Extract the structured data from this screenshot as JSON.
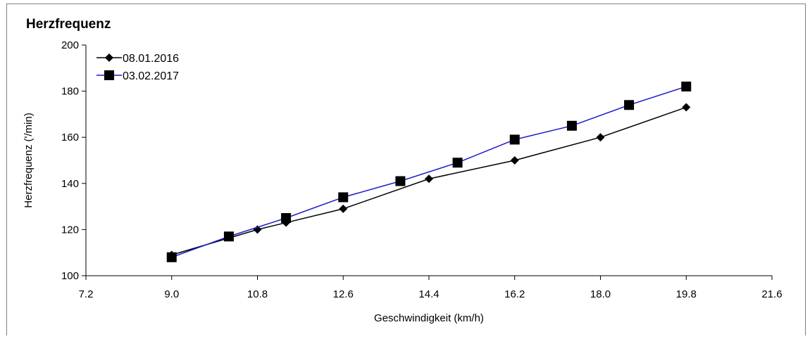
{
  "chart_data": {
    "type": "line",
    "title": "Herzfrequenz",
    "xlabel": "Geschwindigkeit (km/h)",
    "ylabel": "Herzfrequenz ('/min)",
    "xlim": [
      7.2,
      21.6
    ],
    "ylim": [
      100,
      200
    ],
    "xticks": [
      7.2,
      9.0,
      10.8,
      12.6,
      14.4,
      16.2,
      18.0,
      19.8,
      21.6
    ],
    "xtick_labels": [
      "7.2",
      "9.0",
      "10.8",
      "12.6",
      "14.4",
      "16.2",
      "18.0",
      "19.8",
      "21.6"
    ],
    "yticks": [
      100,
      120,
      140,
      160,
      180,
      200
    ],
    "ytick_labels": [
      "100",
      "120",
      "140",
      "160",
      "180",
      "200"
    ],
    "grid": false,
    "legend_position": "top-left",
    "series": [
      {
        "name": "08.01.2016",
        "color": "#000000",
        "marker": "diamond",
        "x": [
          9.0,
          10.8,
          11.4,
          12.6,
          14.4,
          16.2,
          18.0,
          19.8
        ],
        "y": [
          109,
          120,
          123,
          129,
          142,
          150,
          160,
          173
        ]
      },
      {
        "name": "03.02.2017",
        "color": "#1a1acc",
        "marker": "square",
        "x": [
          9.0,
          10.2,
          11.4,
          12.6,
          13.8,
          15.0,
          16.2,
          17.4,
          18.6,
          19.8
        ],
        "y": [
          108,
          117,
          125,
          134,
          141,
          149,
          159,
          165,
          174,
          182
        ]
      }
    ]
  }
}
